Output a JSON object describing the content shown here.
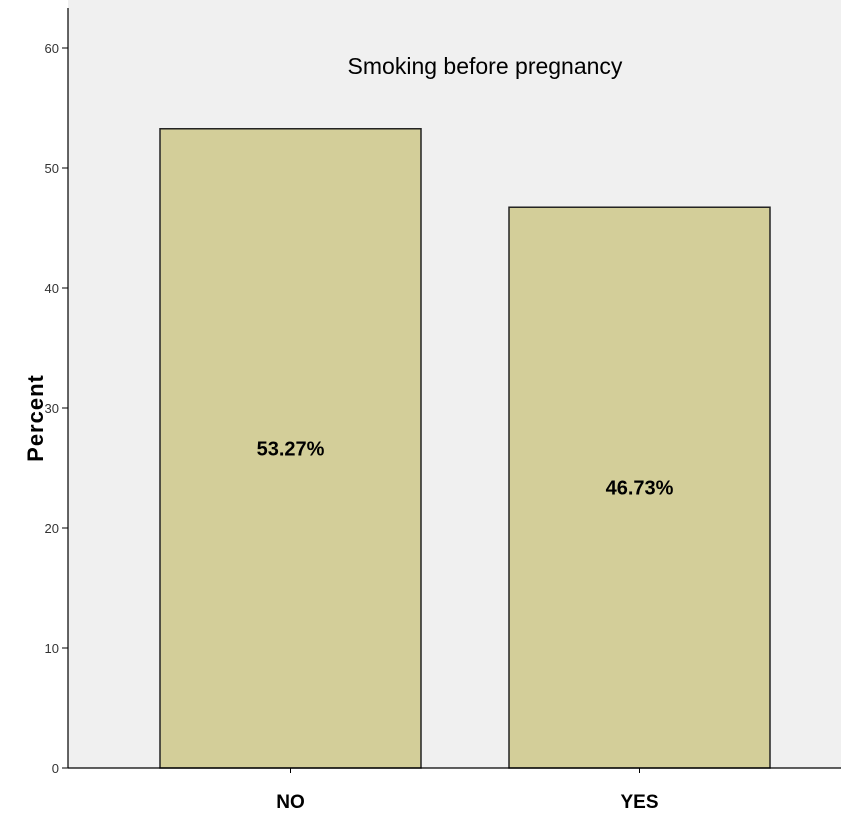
{
  "chart_data": {
    "type": "bar",
    "title": "Smoking before pregnancy",
    "xlabel": "",
    "ylabel": "Percent",
    "categories": [
      "NO",
      "YES"
    ],
    "values": [
      53.27,
      46.73
    ],
    "data_labels": [
      "53.27%",
      "46.73%"
    ],
    "ylim": [
      0,
      60
    ],
    "yticks": [
      0,
      10,
      20,
      30,
      40,
      50,
      60
    ],
    "grid": false,
    "legend": "none",
    "colors": {
      "bar_fill": "#d3ce99",
      "plot_background": "#f0f0f0"
    }
  }
}
